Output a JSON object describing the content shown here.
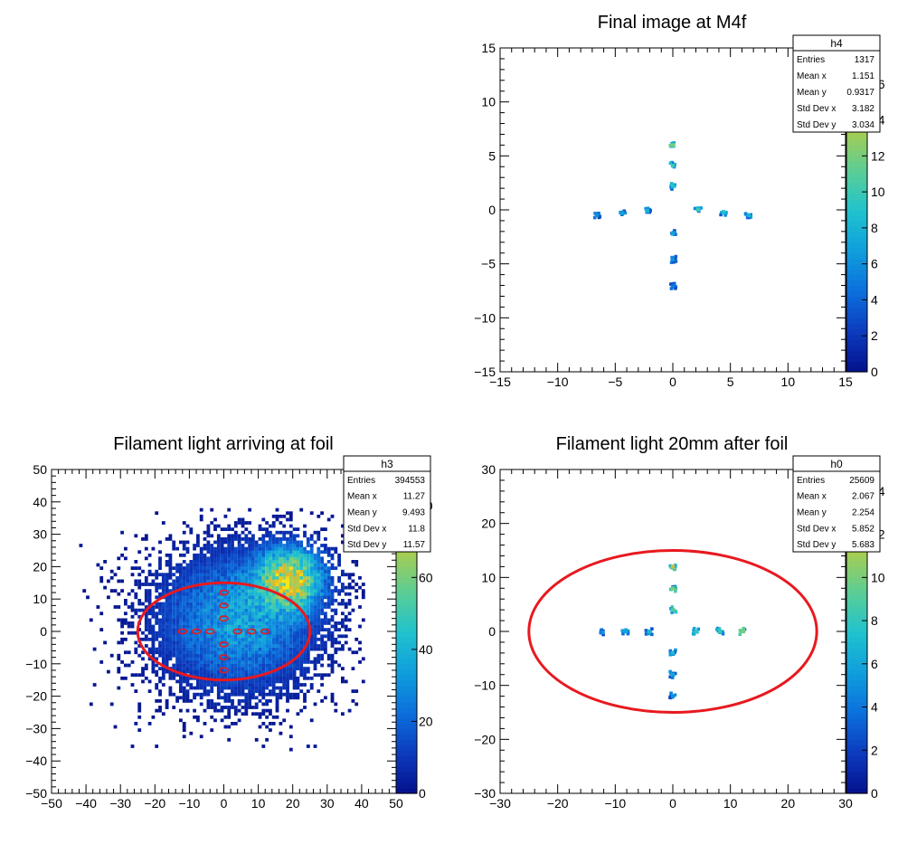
{
  "chart_data": [
    {
      "id": "h4",
      "type": "heatmap",
      "title": "Final image at M4f",
      "xlim": [
        -15,
        15
      ],
      "ylim": [
        -15,
        15
      ],
      "zlim": [
        0,
        18
      ],
      "xticks": [
        -15,
        -10,
        -5,
        0,
        5,
        10,
        15
      ],
      "yticks": [
        -15,
        -10,
        -5,
        0,
        5,
        10,
        15
      ],
      "zticks": [
        0,
        2,
        4,
        6,
        8,
        10,
        12,
        14,
        16
      ],
      "spots": [
        {
          "x": -6.6,
          "y": -0.5,
          "z": 6
        },
        {
          "x": -4.4,
          "y": -0.3,
          "z": 7
        },
        {
          "x": -2.2,
          "y": -0.1,
          "z": 8
        },
        {
          "x": 2.2,
          "y": 0.0,
          "z": 10
        },
        {
          "x": 4.4,
          "y": -0.2,
          "z": 9
        },
        {
          "x": 6.6,
          "y": -0.5,
          "z": 8
        },
        {
          "x": 0.0,
          "y": 6.0,
          "z": 12
        },
        {
          "x": 0.0,
          "y": 4.1,
          "z": 10
        },
        {
          "x": 0.0,
          "y": 2.2,
          "z": 9
        },
        {
          "x": 0.0,
          "y": -2.2,
          "z": 7
        },
        {
          "x": 0.0,
          "y": -4.6,
          "z": 6
        },
        {
          "x": 0.0,
          "y": -7.1,
          "z": 5
        }
      ],
      "stats": {
        "name": "h4",
        "rows": [
          [
            "Entries",
            "1317"
          ],
          [
            "Mean x",
            "1.151"
          ],
          [
            "Mean y",
            "0.9317"
          ],
          [
            "Std Dev x",
            "3.182"
          ],
          [
            "Std Dev y",
            "3.034"
          ]
        ]
      }
    },
    {
      "id": "h3",
      "type": "heatmap",
      "title": "Filament light arriving at foil",
      "xlim": [
        -50,
        50
      ],
      "ylim": [
        -50,
        50
      ],
      "zlim": [
        0,
        90
      ],
      "xticks": [
        -50,
        -40,
        -30,
        -20,
        -10,
        0,
        10,
        20,
        30,
        40,
        50
      ],
      "yticks": [
        -50,
        -40,
        -30,
        -20,
        -10,
        0,
        10,
        20,
        30,
        40,
        50
      ],
      "zticks": [
        0,
        20,
        40,
        60,
        80
      ],
      "distribution": {
        "center": [
          11.27,
          9.493
        ],
        "core_peak": [
          19,
          16
        ],
        "peak_z": 85,
        "x_range": [
          -42,
          41
        ],
        "y_range": [
          -37,
          38
        ]
      },
      "ellipse": {
        "cx": 0,
        "cy": 0,
        "rx": 25,
        "ry": 15
      },
      "markers": [
        {
          "x": -12,
          "y": 0
        },
        {
          "x": -8,
          "y": 0
        },
        {
          "x": -4,
          "y": 0
        },
        {
          "x": 4,
          "y": 0
        },
        {
          "x": 8,
          "y": 0
        },
        {
          "x": 12,
          "y": 0
        },
        {
          "x": 0,
          "y": 12
        },
        {
          "x": 0,
          "y": 8
        },
        {
          "x": 0,
          "y": 4
        },
        {
          "x": 0,
          "y": -4
        },
        {
          "x": 0,
          "y": -8
        },
        {
          "x": 0,
          "y": -12
        }
      ],
      "stats": {
        "name": "h3",
        "rows": [
          [
            "Entries",
            "394553"
          ],
          [
            "Mean x",
            "11.27"
          ],
          [
            "Mean y",
            "9.493"
          ],
          [
            "Std Dev x",
            "11.8"
          ],
          [
            "Std Dev y",
            "11.57"
          ]
        ]
      }
    },
    {
      "id": "h0",
      "type": "heatmap",
      "title": "Filament light 20mm after foil",
      "xlim": [
        -30,
        30
      ],
      "ylim": [
        -30,
        30
      ],
      "zlim": [
        0,
        15
      ],
      "xticks": [
        -30,
        -20,
        -10,
        0,
        10,
        20,
        30
      ],
      "yticks": [
        -30,
        -20,
        -10,
        0,
        10,
        20,
        30
      ],
      "zticks": [
        0,
        2,
        4,
        6,
        8,
        10,
        12,
        14
      ],
      "spots": [
        {
          "x": -12.2,
          "y": -0.2,
          "z": 5
        },
        {
          "x": -8.2,
          "y": 0.0,
          "z": 6
        },
        {
          "x": -4.1,
          "y": 0.0,
          "z": 7
        },
        {
          "x": 4.1,
          "y": 0.0,
          "z": 8
        },
        {
          "x": 8.2,
          "y": 0.0,
          "z": 8
        },
        {
          "x": 12.2,
          "y": 0.0,
          "z": 10
        },
        {
          "x": 0.0,
          "y": 12.0,
          "z": 12
        },
        {
          "x": 0.0,
          "y": 8.0,
          "z": 10
        },
        {
          "x": 0.0,
          "y": 4.0,
          "z": 9
        },
        {
          "x": 0.0,
          "y": -4.0,
          "z": 7
        },
        {
          "x": 0.0,
          "y": -8.0,
          "z": 6
        },
        {
          "x": 0.0,
          "y": -12.0,
          "z": 5
        }
      ],
      "ellipse": {
        "cx": 0,
        "cy": 0,
        "rx": 25,
        "ry": 15
      },
      "stats": {
        "name": "h0",
        "rows": [
          [
            "Entries",
            "25609"
          ],
          [
            "Mean x",
            "2.067"
          ],
          [
            "Mean y",
            "2.254"
          ],
          [
            "Std Dev x",
            "5.852"
          ],
          [
            "Std Dev y",
            "5.683"
          ]
        ]
      }
    }
  ],
  "colors": {
    "ellipse": "#e8191f",
    "frame": "#000000"
  }
}
